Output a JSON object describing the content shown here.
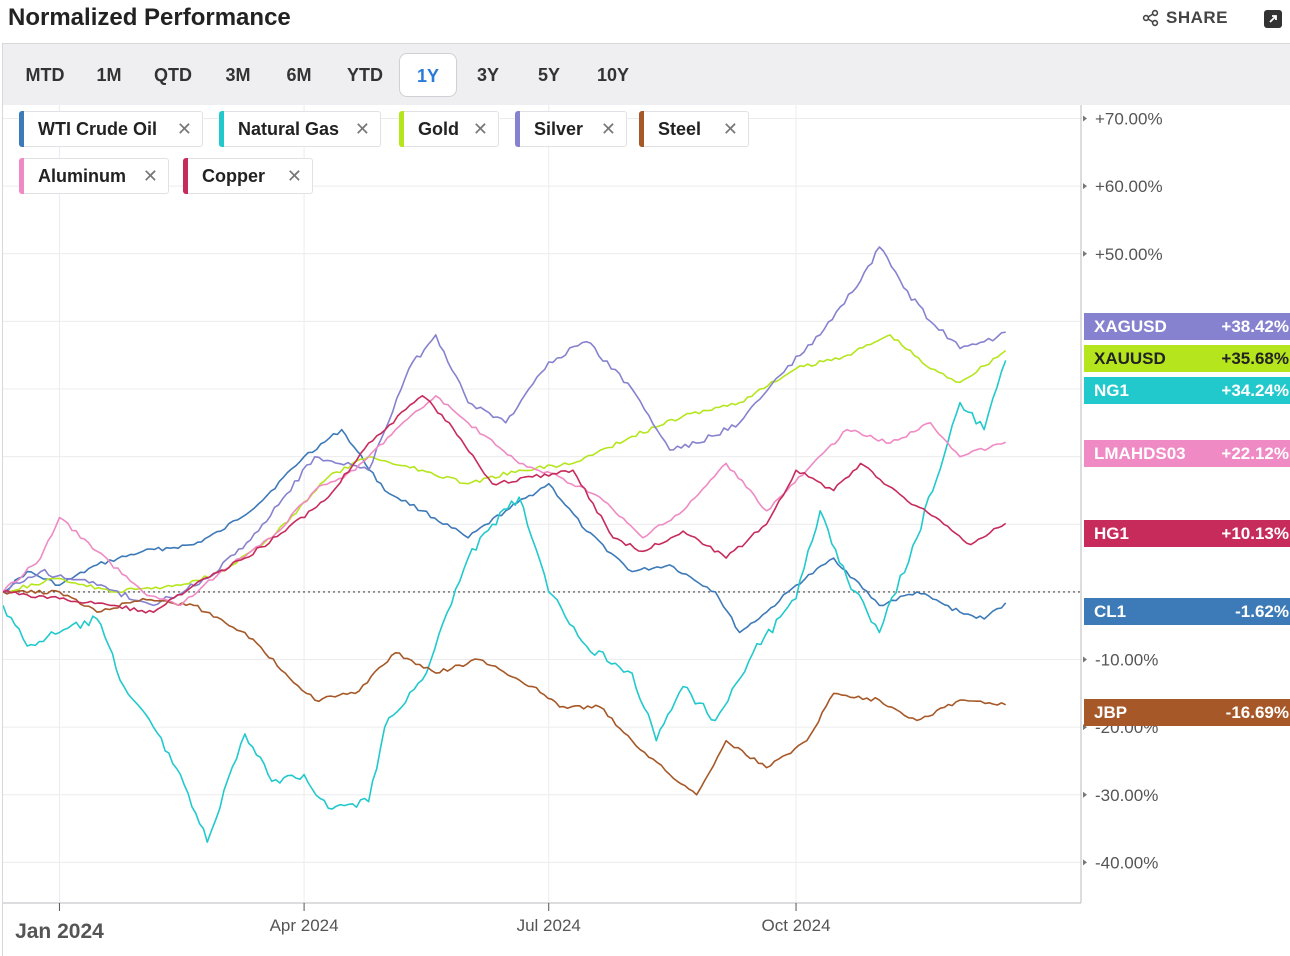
{
  "header": {
    "title": "Normalized Performance",
    "share_label": "SHARE"
  },
  "toolbar": {
    "ranges": [
      "MTD",
      "1M",
      "QTD",
      "3M",
      "6M",
      "YTD",
      "1Y",
      "3Y",
      "5Y",
      "10Y"
    ],
    "active": "1Y"
  },
  "legend": [
    {
      "label": "WTI Crude Oil",
      "color": "#3d7ab8"
    },
    {
      "label": "Natural Gas",
      "color": "#22c9cc"
    },
    {
      "label": "Gold",
      "color": "#b5e61d"
    },
    {
      "label": "Silver",
      "color": "#8682cf"
    },
    {
      "label": "Steel",
      "color": "#a65828"
    },
    {
      "label": "Aluminum",
      "color": "#ef8ac4"
    },
    {
      "label": "Copper",
      "color": "#c72b5c"
    }
  ],
  "chart_data": {
    "type": "line",
    "x_ticks": [
      "Jan 2024",
      "Apr 2024",
      "Jul 2024",
      "Oct 2024"
    ],
    "y_ticks": [
      "+70.00%",
      "+60.00%",
      "+50.00%",
      "-10.00%",
      "-20.00%",
      "-30.00%",
      "-40.00%"
    ],
    "ylim": [
      -46,
      72
    ],
    "xlim": [
      "2023-12-11",
      "2025-01-15"
    ],
    "baseline": 0,
    "series": [
      {
        "name": "WTI Crude Oil",
        "ticker": "CL1",
        "last_label": "-1.62%",
        "color": "#3d7ab8",
        "points": [
          [
            "2023-12-11",
            0
          ],
          [
            "2023-12-20",
            3
          ],
          [
            "2024-01-01",
            1
          ],
          [
            "2024-01-15",
            4
          ],
          [
            "2024-02-01",
            6
          ],
          [
            "2024-02-20",
            7
          ],
          [
            "2024-03-01",
            9
          ],
          [
            "2024-03-15",
            13
          ],
          [
            "2024-04-01",
            20
          ],
          [
            "2024-04-15",
            24
          ],
          [
            "2024-05-01",
            15
          ],
          [
            "2024-05-15",
            12
          ],
          [
            "2024-06-01",
            8
          ],
          [
            "2024-06-15",
            12
          ],
          [
            "2024-07-01",
            16
          ],
          [
            "2024-07-15",
            9
          ],
          [
            "2024-08-01",
            3
          ],
          [
            "2024-08-15",
            4
          ],
          [
            "2024-09-01",
            0
          ],
          [
            "2024-09-10",
            -6
          ],
          [
            "2024-09-20",
            -3
          ],
          [
            "2024-10-01",
            1
          ],
          [
            "2024-10-15",
            5
          ],
          [
            "2024-11-01",
            -2
          ],
          [
            "2024-11-15",
            0
          ],
          [
            "2024-12-01",
            -3
          ],
          [
            "2024-12-10",
            -4
          ],
          [
            "2024-12-18",
            -1.62
          ]
        ]
      },
      {
        "name": "Natural Gas",
        "ticker": "NG1",
        "last_label": "+34.24%",
        "color": "#22c9cc",
        "points": [
          [
            "2023-12-11",
            -2
          ],
          [
            "2023-12-20",
            -8
          ],
          [
            "2024-01-01",
            -6
          ],
          [
            "2024-01-15",
            -4
          ],
          [
            "2024-01-25",
            -14
          ],
          [
            "2024-02-05",
            -20
          ],
          [
            "2024-02-15",
            -27
          ],
          [
            "2024-02-25",
            -37
          ],
          [
            "2024-03-10",
            -21
          ],
          [
            "2024-03-20",
            -28
          ],
          [
            "2024-04-01",
            -27
          ],
          [
            "2024-04-10",
            -32
          ],
          [
            "2024-04-25",
            -31
          ],
          [
            "2024-05-01",
            -20
          ],
          [
            "2024-05-15",
            -13
          ],
          [
            "2024-06-01",
            5
          ],
          [
            "2024-06-10",
            10
          ],
          [
            "2024-06-20",
            14
          ],
          [
            "2024-07-01",
            0
          ],
          [
            "2024-07-15",
            -8
          ],
          [
            "2024-08-01",
            -12
          ],
          [
            "2024-08-10",
            -22
          ],
          [
            "2024-08-20",
            -14
          ],
          [
            "2024-09-01",
            -19
          ],
          [
            "2024-09-15",
            -9
          ],
          [
            "2024-10-01",
            -1
          ],
          [
            "2024-10-10",
            12
          ],
          [
            "2024-10-20",
            2
          ],
          [
            "2024-11-01",
            -6
          ],
          [
            "2024-11-15",
            8
          ],
          [
            "2024-12-01",
            28
          ],
          [
            "2024-12-10",
            24
          ],
          [
            "2024-12-18",
            34.24
          ]
        ]
      },
      {
        "name": "Gold",
        "ticker": "XAUUSD",
        "last_label": "+35.68%",
        "color": "#b5e61d",
        "points": [
          [
            "2023-12-11",
            0
          ],
          [
            "2024-01-01",
            2
          ],
          [
            "2024-01-20",
            0
          ],
          [
            "2024-02-15",
            1
          ],
          [
            "2024-03-01",
            3
          ],
          [
            "2024-03-20",
            8
          ],
          [
            "2024-04-10",
            17
          ],
          [
            "2024-04-25",
            20
          ],
          [
            "2024-05-15",
            18
          ],
          [
            "2024-06-01",
            16
          ],
          [
            "2024-06-20",
            18
          ],
          [
            "2024-07-10",
            19
          ],
          [
            "2024-08-01",
            23
          ],
          [
            "2024-08-20",
            26
          ],
          [
            "2024-09-10",
            28
          ],
          [
            "2024-10-01",
            33
          ],
          [
            "2024-10-20",
            35
          ],
          [
            "2024-11-05",
            38
          ],
          [
            "2024-11-20",
            33
          ],
          [
            "2024-12-01",
            31
          ],
          [
            "2024-12-18",
            35.68
          ]
        ]
      },
      {
        "name": "Silver",
        "ticker": "XAGUSD",
        "last_label": "+38.42%",
        "color": "#8682cf",
        "points": [
          [
            "2023-12-11",
            0
          ],
          [
            "2023-12-25",
            3
          ],
          [
            "2024-01-15",
            1
          ],
          [
            "2024-02-05",
            -2
          ],
          [
            "2024-02-25",
            2
          ],
          [
            "2024-03-15",
            9
          ],
          [
            "2024-04-05",
            20
          ],
          [
            "2024-04-25",
            18
          ],
          [
            "2024-05-10",
            33
          ],
          [
            "2024-05-20",
            38
          ],
          [
            "2024-06-01",
            28
          ],
          [
            "2024-06-15",
            25
          ],
          [
            "2024-07-01",
            34
          ],
          [
            "2024-07-15",
            37
          ],
          [
            "2024-08-01",
            30
          ],
          [
            "2024-08-15",
            21
          ],
          [
            "2024-08-25",
            22
          ],
          [
            "2024-09-10",
            25
          ],
          [
            "2024-09-25",
            32
          ],
          [
            "2024-10-10",
            38
          ],
          [
            "2024-10-25",
            46
          ],
          [
            "2024-11-01",
            51
          ],
          [
            "2024-11-10",
            45
          ],
          [
            "2024-11-20",
            40
          ],
          [
            "2024-12-01",
            36
          ],
          [
            "2024-12-10",
            37
          ],
          [
            "2024-12-18",
            38.42
          ]
        ]
      },
      {
        "name": "Steel",
        "ticker": "JBP",
        "last_label": "-16.69%",
        "color": "#a65828",
        "points": [
          [
            "2023-12-11",
            0
          ],
          [
            "2024-01-01",
            0
          ],
          [
            "2024-01-15",
            -3
          ],
          [
            "2024-02-01",
            -1
          ],
          [
            "2024-02-20",
            -2
          ],
          [
            "2024-03-10",
            -6
          ],
          [
            "2024-03-25",
            -12
          ],
          [
            "2024-04-05",
            -16
          ],
          [
            "2024-04-20",
            -15
          ],
          [
            "2024-05-05",
            -9
          ],
          [
            "2024-05-20",
            -12
          ],
          [
            "2024-06-05",
            -10
          ],
          [
            "2024-06-25",
            -14
          ],
          [
            "2024-07-05",
            -17
          ],
          [
            "2024-07-20",
            -17
          ],
          [
            "2024-08-01",
            -22
          ],
          [
            "2024-08-15",
            -27
          ],
          [
            "2024-08-25",
            -30
          ],
          [
            "2024-09-05",
            -22
          ],
          [
            "2024-09-20",
            -26
          ],
          [
            "2024-10-05",
            -22
          ],
          [
            "2024-10-15",
            -15
          ],
          [
            "2024-11-01",
            -16
          ],
          [
            "2024-11-15",
            -19
          ],
          [
            "2024-12-01",
            -16
          ],
          [
            "2024-12-18",
            -16.69
          ]
        ]
      },
      {
        "name": "Aluminum",
        "ticker": "LMAHDS03",
        "last_label": "+22.12%",
        "color": "#ef8ac4",
        "points": [
          [
            "2023-12-11",
            0
          ],
          [
            "2023-12-25",
            5
          ],
          [
            "2024-01-01",
            11
          ],
          [
            "2024-01-15",
            6
          ],
          [
            "2024-02-01",
            0
          ],
          [
            "2024-02-15",
            -2
          ],
          [
            "2024-03-01",
            3
          ],
          [
            "2024-03-20",
            8
          ],
          [
            "2024-04-05",
            15
          ],
          [
            "2024-04-20",
            18
          ],
          [
            "2024-05-05",
            24
          ],
          [
            "2024-05-20",
            29
          ],
          [
            "2024-06-01",
            25
          ],
          [
            "2024-06-20",
            19
          ],
          [
            "2024-07-05",
            17
          ],
          [
            "2024-07-20",
            14
          ],
          [
            "2024-08-05",
            8
          ],
          [
            "2024-08-20",
            12
          ],
          [
            "2024-09-05",
            19
          ],
          [
            "2024-09-20",
            12
          ],
          [
            "2024-10-05",
            18
          ],
          [
            "2024-10-20",
            24
          ],
          [
            "2024-11-05",
            22
          ],
          [
            "2024-11-20",
            25
          ],
          [
            "2024-12-01",
            20
          ],
          [
            "2024-12-18",
            22.12
          ]
        ]
      },
      {
        "name": "Copper",
        "ticker": "HG1",
        "last_label": "+10.13%",
        "color": "#c72b5c",
        "points": [
          [
            "2023-12-11",
            0
          ],
          [
            "2024-01-01",
            -1
          ],
          [
            "2024-01-20",
            -2
          ],
          [
            "2024-02-05",
            -3
          ],
          [
            "2024-02-20",
            1
          ],
          [
            "2024-03-10",
            5
          ],
          [
            "2024-03-25",
            9
          ],
          [
            "2024-04-10",
            14
          ],
          [
            "2024-04-25",
            22
          ],
          [
            "2024-05-15",
            29
          ],
          [
            "2024-05-25",
            25
          ],
          [
            "2024-06-10",
            16
          ],
          [
            "2024-06-25",
            17
          ],
          [
            "2024-07-10",
            18
          ],
          [
            "2024-07-25",
            8
          ],
          [
            "2024-08-05",
            6
          ],
          [
            "2024-08-20",
            9
          ],
          [
            "2024-09-05",
            5
          ],
          [
            "2024-09-20",
            10
          ],
          [
            "2024-10-01",
            18
          ],
          [
            "2024-10-15",
            15
          ],
          [
            "2024-10-25",
            19
          ],
          [
            "2024-11-10",
            14
          ],
          [
            "2024-11-25",
            10
          ],
          [
            "2024-12-05",
            7
          ],
          [
            "2024-12-18",
            10.13
          ]
        ]
      }
    ]
  }
}
